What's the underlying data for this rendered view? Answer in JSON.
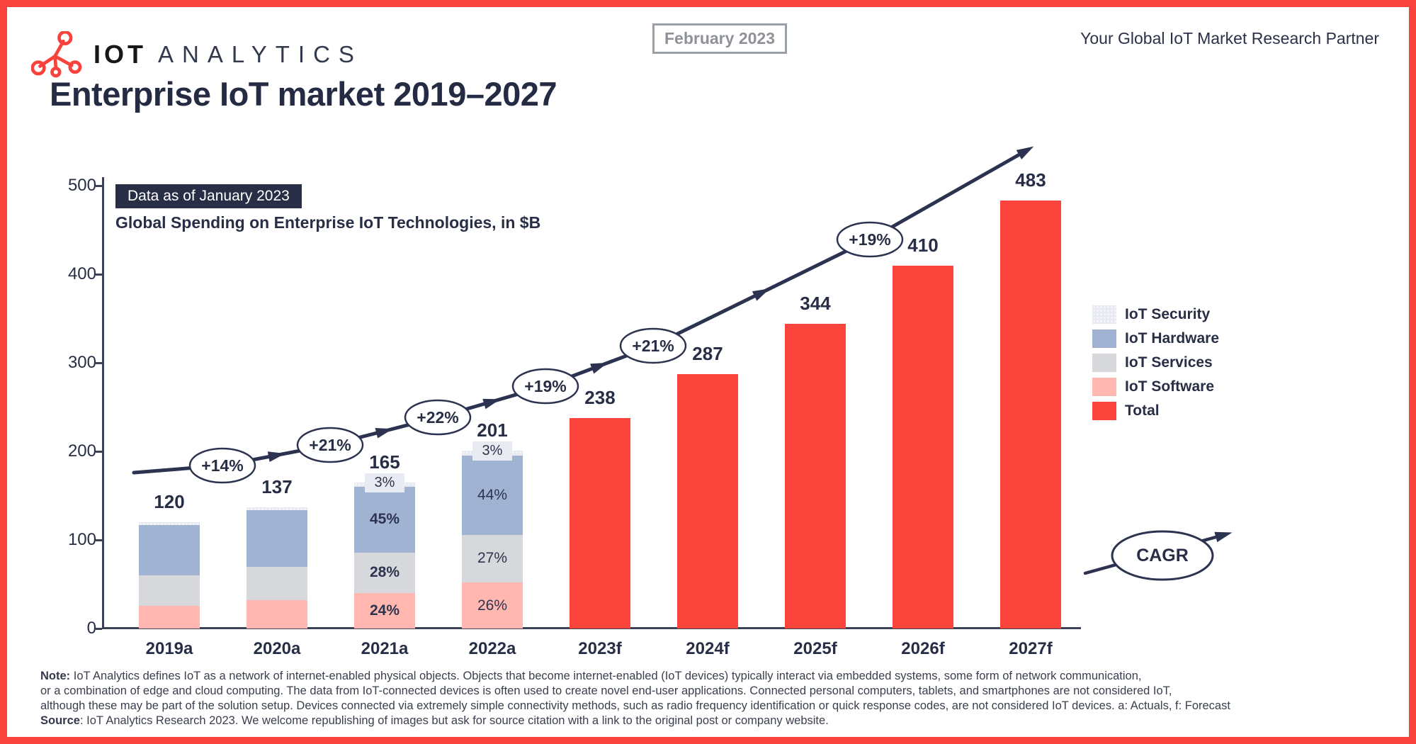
{
  "header": {
    "logo_iot": "IOT",
    "logo_analytics": "ANALYTICS",
    "date_badge": "February 2023",
    "tagline": "Your Global IoT Market Research Partner"
  },
  "title": "Enterprise IoT market 2019–2027",
  "chart_data": {
    "type": "bar",
    "title": "Global Spending on Enterprise IoT Technologies, in $B",
    "data_badge": "Data as of January 2023",
    "categories": [
      "2019a",
      "2020a",
      "2021a",
      "2022a",
      "2023f",
      "2024f",
      "2025f",
      "2026f",
      "2027f"
    ],
    "totals": [
      120,
      137,
      165,
      201,
      238,
      287,
      344,
      410,
      483
    ],
    "actual_bars": [
      {
        "category": "2019a",
        "total": 120,
        "total_label": "120",
        "segments": [
          {
            "key": "software",
            "value": 26
          },
          {
            "key": "services",
            "value": 34
          },
          {
            "key": "hardware",
            "value": 57
          },
          {
            "key": "security",
            "value": 3
          }
        ]
      },
      {
        "category": "2020a",
        "total": 137,
        "total_label": "137",
        "segments": [
          {
            "key": "software",
            "value": 32
          },
          {
            "key": "services",
            "value": 38
          },
          {
            "key": "hardware",
            "value": 64
          },
          {
            "key": "security",
            "value": 3
          }
        ]
      },
      {
        "category": "2021a",
        "total": 165,
        "total_label": "165",
        "segments": [
          {
            "key": "software",
            "value": 40,
            "label": "24%",
            "bold": true
          },
          {
            "key": "services",
            "value": 46,
            "label": "28%",
            "bold": true
          },
          {
            "key": "hardware",
            "value": 74,
            "label": "45%",
            "bold": true
          },
          {
            "key": "security",
            "value": 5,
            "label": "3%"
          }
        ]
      },
      {
        "category": "2022a",
        "total": 201,
        "total_label": "201",
        "segments": [
          {
            "key": "software",
            "value": 52,
            "label": "26%"
          },
          {
            "key": "services",
            "value": 54,
            "label": "27%"
          },
          {
            "key": "hardware",
            "value": 89,
            "label": "44%"
          },
          {
            "key": "security",
            "value": 6,
            "label": "3%"
          }
        ]
      }
    ],
    "forecast_bars": [
      {
        "category": "2023f",
        "total": 238,
        "total_label": "238"
      },
      {
        "category": "2024f",
        "total": 287,
        "total_label": "287"
      },
      {
        "category": "2025f",
        "total": 344,
        "total_label": "344"
      },
      {
        "category": "2026f",
        "total": 410,
        "total_label": "410"
      },
      {
        "category": "2027f",
        "total": 483,
        "total_label": "483"
      }
    ],
    "growth_labels": [
      "+14%",
      "+21%",
      "+22%",
      "+19%",
      "+21%",
      "+19%"
    ],
    "cagr_label": "CAGR",
    "ylim": [
      0,
      500
    ],
    "yticks": [
      0,
      100,
      200,
      300,
      400,
      500
    ],
    "legend": [
      {
        "label": "IoT Security",
        "key": "security"
      },
      {
        "label": "IoT Hardware",
        "key": "hardware"
      },
      {
        "label": "IoT Services",
        "key": "services"
      },
      {
        "label": "IoT Software",
        "key": "software"
      },
      {
        "label": "Total",
        "key": "total"
      }
    ],
    "legend_position": "right",
    "grid": false
  },
  "colors": {
    "total": "#fb453c",
    "hardware": "#a1b3d2",
    "services": "#d6d8db",
    "software": "#ffb7b0",
    "security": "#e9ebf2",
    "navy": "#272e45",
    "border_red": "#f9423b"
  },
  "note": {
    "line1_prefix": "Note:",
    "line1": " IoT Analytics defines IoT as a network of internet-enabled physical objects. Objects that become internet-enabled (IoT devices) typically interact via embedded systems, some form of network communication,",
    "line2": "or a combination of edge and cloud computing. The data from IoT-connected devices is often used to create novel end-user applications. Connected personal computers, tablets, and smartphones are not considered IoT,",
    "line3": "although these may be part of the solution setup. Devices connected via extremely simple connectivity methods, such as radio frequency identification or quick response codes, are not considered IoT devices. a: Actuals, f: Forecast",
    "line4_prefix": "Source",
    "line4": ": IoT Analytics Research 2023. We welcome republishing of images but ask for source citation with a link to the original post or company website."
  }
}
